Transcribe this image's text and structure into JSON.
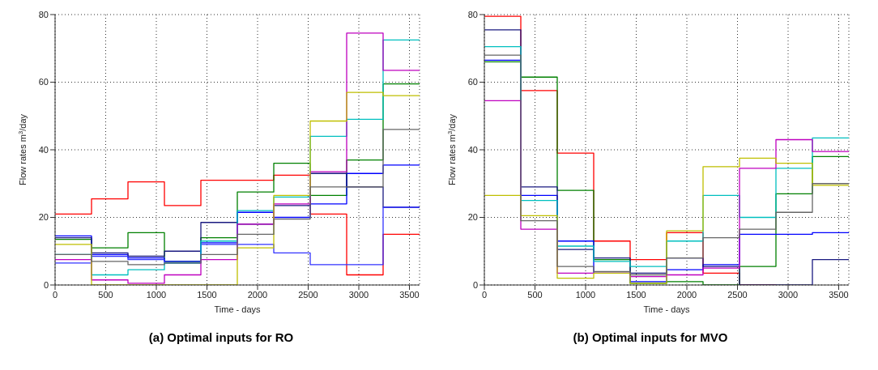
{
  "chart_data": [
    {
      "type": "step",
      "title": "(a) Optimal inputs for RO",
      "xlabel": "Time - days",
      "ylabel": "Flow rates m$^{3}$/day",
      "x": [
        0,
        360,
        720,
        1080,
        1440,
        1800,
        2160,
        2520,
        2880,
        3240,
        3600
      ],
      "xlim": [
        0,
        3600
      ],
      "xticks": [
        0,
        500,
        1000,
        1500,
        2000,
        2500,
        3000,
        3500
      ],
      "ylim": [
        0,
        80
      ],
      "yticks": [
        0,
        20,
        40,
        60,
        80
      ],
      "grid": true,
      "marker": "none",
      "line_style": "solid",
      "series": [
        {
          "color": "#ff0000",
          "values": [
            21,
            25.5,
            30.5,
            23.5,
            31,
            31,
            32.5,
            21,
            3,
            15,
            15
          ]
        },
        {
          "color": "#008000",
          "values": [
            13.5,
            11,
            15.5,
            7,
            14,
            27.5,
            36,
            26.5,
            37,
            59.5,
            59.5
          ]
        },
        {
          "color": "#0000ff",
          "values": [
            14.5,
            9,
            8,
            7,
            12.5,
            21.5,
            20,
            24,
            33,
            35.5,
            35.5
          ]
        },
        {
          "color": "#1a1a80",
          "values": [
            14,
            9.5,
            8.5,
            10,
            18.5,
            18,
            23.5,
            33,
            29,
            23,
            23
          ]
        },
        {
          "color": "#3333ff",
          "values": [
            6.5,
            8.5,
            7.5,
            6.5,
            12,
            12,
            9.5,
            6,
            6,
            23,
            23
          ]
        },
        {
          "color": "#00bfbf",
          "values": [
            9,
            3,
            4.5,
            6.5,
            13,
            22,
            26,
            44,
            49,
            72.5,
            72.5
          ]
        },
        {
          "color": "#bf00bf",
          "values": [
            7.5,
            1.5,
            0.5,
            3,
            7.5,
            18,
            24,
            33.5,
            74.5,
            63.5,
            63.5
          ]
        },
        {
          "color": "#bfbf00",
          "values": [
            12,
            0,
            0,
            0,
            0,
            11,
            26.5,
            48.5,
            57,
            56,
            56
          ]
        },
        {
          "color": "#666666",
          "values": [
            9,
            7,
            6,
            6.5,
            9,
            15,
            19.5,
            29,
            29,
            46,
            46
          ]
        }
      ]
    },
    {
      "type": "step",
      "title": "(b) Optimal inputs for MVO",
      "xlabel": "Time - days",
      "ylabel": "Flow rates m$^{3}$/day",
      "x": [
        0,
        360,
        720,
        1080,
        1440,
        1800,
        2160,
        2520,
        2880,
        3240,
        3600
      ],
      "xlim": [
        0,
        3600
      ],
      "xticks": [
        0,
        500,
        1000,
        1500,
        2000,
        2500,
        3000,
        3500
      ],
      "ylim": [
        0,
        80
      ],
      "yticks": [
        0,
        20,
        40,
        60,
        80
      ],
      "grid": true,
      "marker": "none",
      "line_style": "solid",
      "series": [
        {
          "color": "#ff0000",
          "values": [
            79.5,
            57.5,
            39,
            13,
            7.5,
            15.5,
            3.5,
            0,
            0,
            null,
            null
          ]
        },
        {
          "color": "#008000",
          "values": [
            66,
            61.5,
            28,
            7.5,
            0.5,
            1,
            0,
            5.5,
            27,
            38,
            38
          ]
        },
        {
          "color": "#0000ff",
          "values": [
            66.5,
            26.5,
            13,
            3.5,
            1,
            4.5,
            6,
            15,
            15,
            15.5,
            15.5
          ]
        },
        {
          "color": "#1a1a80",
          "values": [
            75.5,
            29,
            10.5,
            8,
            3.5,
            8,
            5.5,
            0,
            0,
            7.5,
            7.5
          ]
        },
        {
          "color": "#00bfbf",
          "values": [
            70.5,
            25,
            11.5,
            7,
            5.5,
            13,
            26.5,
            20,
            34.5,
            43.5,
            43.5
          ]
        },
        {
          "color": "#bf00bf",
          "values": [
            54.5,
            16.5,
            3.5,
            3.5,
            2.5,
            3,
            5,
            34.5,
            43,
            39.5,
            39.5
          ]
        },
        {
          "color": "#bfbf00",
          "values": [
            26.5,
            20.5,
            2,
            3.5,
            0.5,
            16,
            35,
            37.5,
            36,
            29.5,
            29.5
          ]
        },
        {
          "color": "#666666",
          "values": [
            68,
            19,
            5.5,
            4,
            3,
            8,
            14,
            16.5,
            21.5,
            30,
            30
          ]
        }
      ]
    }
  ]
}
